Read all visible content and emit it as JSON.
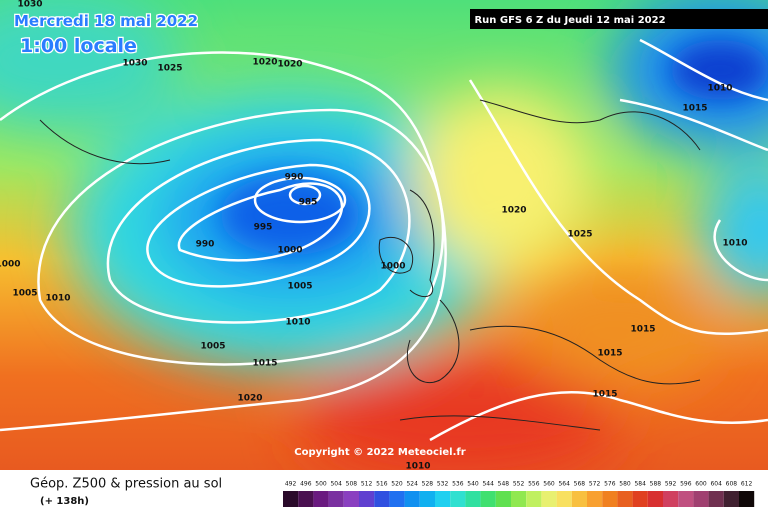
{
  "header": {
    "date": "Mercredi 18 mai 2022",
    "time": "1:00 locale",
    "run": "Run GFS 6 Z du Jeudi 12 mai 2022"
  },
  "isobar_labels": [
    "1030",
    "1030",
    "1025",
    "1020",
    "1020",
    "1015",
    "1010",
    "990",
    "985",
    "995",
    "990",
    "1000",
    "1000",
    "1020",
    "1025",
    "1010",
    "1000",
    "1005",
    "1010",
    "1005",
    "1010",
    "1005",
    "1015",
    "1015",
    "1015",
    "1020",
    "1015",
    "1010"
  ],
  "copyright": "Copyright © 2022 Meteociel.fr",
  "legend": {
    "title": "Géop. Z500 & pression au sol",
    "subtitle": "(+ 138h)",
    "scale": [
      492,
      496,
      500,
      504,
      508,
      512,
      516,
      520,
      524,
      528,
      532,
      536,
      540,
      544,
      548,
      552,
      556,
      560,
      564,
      568,
      572,
      576,
      580,
      584,
      588,
      592,
      596,
      600,
      604,
      608,
      612
    ]
  }
}
